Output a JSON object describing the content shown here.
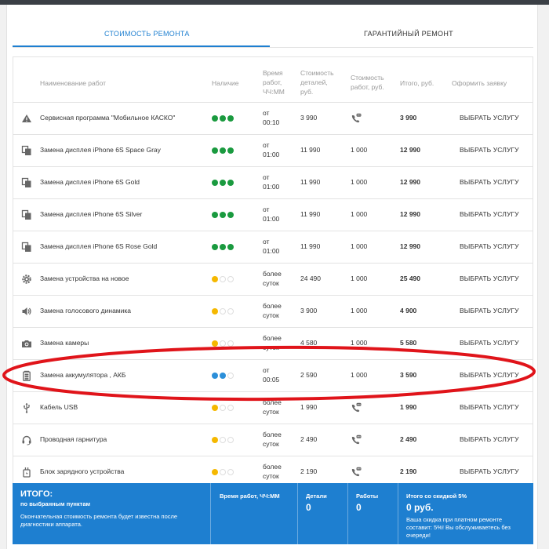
{
  "tabs": [
    {
      "label": "СТОИМОСТЬ РЕМОНТА",
      "active": true
    },
    {
      "label": "ГАРАНТИЙНЫЙ РЕМОНТ",
      "active": false
    }
  ],
  "table": {
    "headers": {
      "name": "Наименование работ",
      "availability": "Наличие",
      "time_1": "Время",
      "time_2": "работ,",
      "time_3": "ЧЧ:ММ",
      "parts_1": "Стоимость",
      "parts_2": "деталей,",
      "parts_3": "руб.",
      "work_1": "Стоимость",
      "work_2": "работ, руб.",
      "total": "Итого, руб.",
      "order": "Оформить заявку"
    },
    "rows": [
      {
        "icon": "warning-triangle-icon",
        "name": "Сервисная программа \"Мобильное КАСКО\"",
        "availability": "green",
        "time_1": "от",
        "time_2": "00:10",
        "parts": "3 990",
        "work": "",
        "work_icon": "phone-chat-icon",
        "total": "3 990",
        "action": "ВЫБРАТЬ УСЛУГУ"
      },
      {
        "icon": "display-icon",
        "name": "Замена дисплея iPhone 6S Space Gray",
        "availability": "green",
        "time_1": "от",
        "time_2": "01:00",
        "parts": "11 990",
        "work": "1 000",
        "work_icon": "",
        "total": "12 990",
        "action": "ВЫБРАТЬ УСЛУГУ"
      },
      {
        "icon": "display-icon",
        "name": "Замена дисплея iPhone 6S Gold",
        "availability": "green",
        "time_1": "от",
        "time_2": "01:00",
        "parts": "11 990",
        "work": "1 000",
        "work_icon": "",
        "total": "12 990",
        "action": "ВЫБРАТЬ УСЛУГУ"
      },
      {
        "icon": "display-icon",
        "name": "Замена дисплея iPhone 6S Silver",
        "availability": "green",
        "time_1": "от",
        "time_2": "01:00",
        "parts": "11 990",
        "work": "1 000",
        "work_icon": "",
        "total": "12 990",
        "action": "ВЫБРАТЬ УСЛУГУ"
      },
      {
        "icon": "display-icon",
        "name": "Замена дисплея iPhone 6S Rose Gold",
        "availability": "green",
        "time_1": "от",
        "time_2": "01:00",
        "parts": "11 990",
        "work": "1 000",
        "work_icon": "",
        "total": "12 990",
        "action": "ВЫБРАТЬ УСЛУГУ"
      },
      {
        "icon": "gear-icon",
        "name": "Замена устройства на новое",
        "availability": "yellow",
        "time_1": "более",
        "time_2": "суток",
        "parts": "24 490",
        "work": "1 000",
        "work_icon": "",
        "total": "25 490",
        "action": "ВЫБРАТЬ УСЛУГУ"
      },
      {
        "icon": "speaker-icon",
        "name": "Замена голосового динамика",
        "availability": "yellow",
        "time_1": "более",
        "time_2": "суток",
        "parts": "3 900",
        "work": "1 000",
        "work_icon": "",
        "total": "4 900",
        "action": "ВЫБРАТЬ УСЛУГУ"
      },
      {
        "icon": "camera-icon",
        "name": "Замена камеры",
        "availability": "yellow",
        "time_1": "более",
        "time_2": "суток",
        "parts": "4 580",
        "work": "1 000",
        "work_icon": "",
        "total": "5 580",
        "action": "ВЫБРАТЬ УСЛУГУ"
      },
      {
        "icon": "battery-icon",
        "name": "Замена аккумулятора , АКБ",
        "availability": "blue",
        "time_1": "от",
        "time_2": "00:05",
        "parts": "2 590",
        "work": "1 000",
        "work_icon": "",
        "total": "3 590",
        "action": "ВЫБРАТЬ УСЛУГУ"
      },
      {
        "icon": "usb-icon",
        "name": "Кабель USB",
        "availability": "yellow",
        "time_1": "более",
        "time_2": "суток",
        "parts": "1 990",
        "work": "",
        "work_icon": "phone-chat-icon",
        "total": "1 990",
        "action": "ВЫБРАТЬ УСЛУГУ"
      },
      {
        "icon": "headset-icon",
        "name": "Проводная гарнитура",
        "availability": "yellow",
        "time_1": "более",
        "time_2": "суток",
        "parts": "2 490",
        "work": "",
        "work_icon": "phone-chat-icon",
        "total": "2 490",
        "action": "ВЫБРАТЬ УСЛУГУ"
      },
      {
        "icon": "charger-icon",
        "name": "Блок зарядного устройства",
        "availability": "yellow",
        "time_1": "более",
        "time_2": "суток",
        "parts": "2 190",
        "work": "",
        "work_icon": "phone-chat-icon",
        "total": "2 190",
        "action": "ВЫБРАТЬ УСЛУГУ"
      }
    ]
  },
  "footer": {
    "title": "ИТОГО:",
    "subtitle": "по выбранным пунктам",
    "note": "Окончательная стоимость ремонта будет известна после диагностики аппарата.",
    "time_label": "Время работ, ЧЧ:ММ",
    "parts_label": "Детали",
    "parts_value": "0",
    "work_label": "Работы",
    "work_value": "0",
    "discount_label": "Итого со скидкой 5%",
    "discount_value": "0 руб.",
    "discount_note": "Ваша скидка при платном ремонте составит: 5%! Вы обслуживаетесь без очереди!"
  },
  "colors": {
    "accent": "#1e7fd0",
    "green": "#1a9a3f",
    "yellow": "#f5b800",
    "blue": "#2b8fd9",
    "annotation": "#e0141a"
  }
}
